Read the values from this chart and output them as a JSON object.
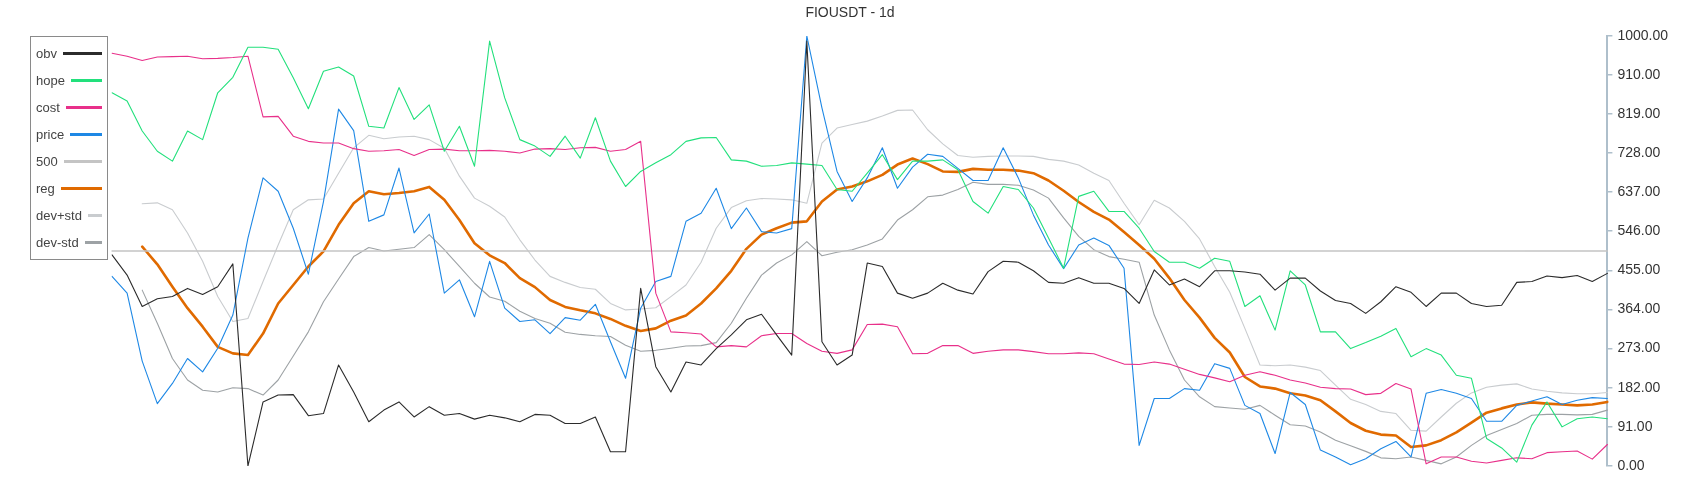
{
  "chart_data": {
    "type": "line",
    "title": "FIOUSDT - 1d",
    "categories": [
      null,
      null,
      null,
      null,
      null,
      null,
      null,
      null,
      null,
      null,
      null,
      null,
      null,
      null,
      null,
      null,
      null,
      null,
      null,
      null,
      null,
      null,
      null,
      null,
      null,
      null,
      null,
      null,
      null,
      null,
      null,
      null,
      null,
      null,
      null,
      null,
      null,
      null,
      null,
      null,
      null,
      null,
      null,
      null,
      null,
      null,
      null,
      null,
      null,
      null,
      null,
      null,
      null,
      null,
      null,
      null,
      null,
      null,
      null,
      null,
      null,
      null,
      null,
      null,
      null,
      null,
      null,
      null,
      null,
      null,
      null,
      null,
      null,
      null,
      null,
      null,
      null,
      null,
      null,
      null,
      null,
      null,
      null,
      null,
      null,
      null,
      null,
      null,
      null,
      null,
      null,
      null,
      null,
      null,
      null,
      null,
      null,
      null,
      null,
      null
    ],
    "series": [
      {
        "name": "obv",
        "color": "#2b2b2b",
        "values": [
          491,
          444,
          371,
          389,
          394,
          413,
          399,
          417,
          470,
          0,
          149,
          165,
          166,
          117,
          122,
          235,
          172,
          103,
          130,
          149,
          114,
          138,
          118,
          122,
          109,
          118,
          112,
          103,
          120,
          118,
          99,
          99,
          114,
          33,
          33,
          413,
          231,
          172,
          242,
          235,
          273,
          305,
          340,
          353,
          305,
          258,
          988,
          289,
          235,
          258,
          472,
          464,
          402,
          390,
          402,
          425,
          409,
          400,
          452,
          476,
          474,
          454,
          427,
          425,
          438,
          425,
          425,
          413,
          378,
          456,
          421,
          435,
          417,
          454,
          454,
          451,
          446,
          409,
          437,
          437,
          407,
          385,
          378,
          355,
          382,
          417,
          404,
          371,
          402,
          402,
          378,
          371,
          374,
          427,
          429,
          442,
          438,
          443,
          429,
          448
        ]
      },
      {
        "name": "hope",
        "color": "#22e07c",
        "values": [
          868,
          849,
          779,
          732,
          709,
          779,
          759,
          868,
          904,
          974,
          974,
          969,
          903,
          831,
          918,
          928,
          907,
          790,
          786,
          880,
          806,
          840,
          732,
          790,
          697,
          988,
          856,
          759,
          744,
          720,
          767,
          716,
          810,
          709,
          650,
          685,
          705,
          724,
          755,
          763,
          764,
          712,
          709,
          697,
          699,
          705,
          702,
          699,
          643,
          639,
          681,
          724,
          666,
          709,
          709,
          712,
          689,
          615,
          588,
          650,
          643,
          600,
          530,
          460,
          627,
          639,
          592,
          592,
          553,
          499,
          474,
          474,
          460,
          483,
          476,
          371,
          396,
          316,
          454,
          421,
          312,
          312,
          273,
          287,
          302,
          320,
          254,
          273,
          258,
          211,
          204,
          64,
          42,
          9,
          95,
          149,
          91,
          110,
          114,
          110
        ]
      },
      {
        "name": "cost",
        "color": "#e8308a",
        "values": [
          960,
          953,
          943,
          951,
          952,
          953,
          947,
          948,
          950,
          953,
          812,
          813,
          767,
          755,
          751,
          751,
          738,
          732,
          733,
          736,
          722,
          736,
          737,
          733,
          733,
          734,
          732,
          728,
          737,
          738,
          736,
          740,
          741,
          732,
          736,
          755,
          402,
          312,
          310,
          307,
          277,
          280,
          277,
          303,
          308,
          308,
          285,
          267,
          262,
          270,
          329,
          330,
          324,
          261,
          262,
          280,
          280,
          262,
          267,
          270,
          270,
          266,
          261,
          261,
          263,
          261,
          249,
          237,
          236,
          242,
          237,
          225,
          213,
          205,
          196,
          211,
          219,
          211,
          200,
          193,
          183,
          180,
          179,
          166,
          169,
          192,
          179,
          5,
          21,
          21,
          11,
          7,
          13,
          19,
          17,
          31,
          33,
          35,
          16,
          50
        ]
      },
      {
        "name": "price",
        "color": "#1e88e5",
        "values": [
          441,
          402,
          244,
          145,
          192,
          250,
          219,
          274,
          351,
          530,
          670,
          639,
          553,
          446,
          615,
          830,
          780,
          569,
          584,
          693,
          542,
          586,
          402,
          433,
          347,
          476,
          367,
          336,
          340,
          308,
          345,
          339,
          376,
          289,
          204,
          367,
          429,
          441,
          569,
          588,
          646,
          552,
          600,
          545,
          542,
          552,
          1000,
          833,
          685,
          615,
          670,
          740,
          646,
          695,
          725,
          720,
          692,
          664,
          664,
          740,
          670,
          584,
          514,
          459,
          514,
          530,
          513,
          460,
          48,
          157,
          157,
          180,
          176,
          238,
          227,
          141,
          122,
          29,
          171,
          143,
          37,
          21,
          3,
          17,
          40,
          57,
          21,
          169,
          178,
          169,
          157,
          104,
          104,
          141,
          151,
          161,
          143,
          153,
          159,
          157
        ]
      },
      {
        "name": "500",
        "color": "#c4c4c4",
        "values": [
          500,
          500,
          500,
          500,
          500,
          500,
          500,
          500,
          500,
          500,
          500,
          500,
          500,
          500,
          500,
          500,
          500,
          500,
          500,
          500,
          500,
          500,
          500,
          500,
          500,
          500,
          500,
          500,
          500,
          500,
          500,
          500,
          500,
          500,
          500,
          500,
          500,
          500,
          500,
          500,
          500,
          500,
          500,
          500,
          500,
          500,
          500,
          500,
          500,
          500,
          500,
          500,
          500,
          500,
          500,
          500,
          500,
          500,
          500,
          500,
          500,
          500,
          500,
          500,
          500,
          500,
          500,
          500,
          500,
          500,
          500,
          500,
          500,
          500,
          500,
          500,
          500,
          500,
          500,
          500,
          500,
          500,
          500,
          500,
          500,
          500,
          500,
          500,
          500,
          500,
          500,
          500,
          500,
          500,
          500,
          500,
          500,
          500,
          500,
          500
        ]
      },
      {
        "name": "reg",
        "color": "#e06a00",
        "values": [
          null,
          null,
          510,
          469,
          417,
          367,
          324,
          277,
          262,
          258,
          308,
          378,
          421,
          464,
          499,
          561,
          611,
          639,
          632,
          635,
          639,
          649,
          619,
          572,
          518,
          490,
          472,
          437,
          416,
          386,
          370,
          362,
          355,
          342,
          326,
          314,
          320,
          338,
          350,
          378,
          413,
          454,
          505,
          538,
          553,
          566,
          569,
          615,
          643,
          650,
          662,
          677,
          701,
          715,
          702,
          685,
          684,
          691,
          689,
          689,
          687,
          681,
          664,
          640,
          614,
          591,
          573,
          544,
          514,
          482,
          437,
          386,
          345,
          298,
          264,
          207,
          185,
          180,
          169,
          164,
          153,
          127,
          100,
          82,
          73,
          71,
          44,
          48,
          60,
          78,
          101,
          124,
          134,
          143,
          148,
          145,
          143,
          141,
          143,
          149
        ]
      },
      {
        "name": "dev+std",
        "color": "#c9cccf",
        "values": [
          null,
          null,
          610,
          612,
          596,
          542,
          476,
          394,
          336,
          343,
          429,
          514,
          596,
          619,
          621,
          681,
          740,
          769,
          761,
          765,
          767,
          759,
          739,
          674,
          623,
          604,
          579,
          526,
          479,
          441,
          427,
          415,
          411,
          378,
          363,
          365,
          368,
          394,
          421,
          474,
          553,
          601,
          617,
          622,
          621,
          619,
          611,
          751,
          786,
          794,
          802,
          814,
          827,
          828,
          782,
          749,
          722,
          718,
          720,
          721,
          721,
          720,
          713,
          709,
          700,
          681,
          664,
          611,
          561,
          618,
          600,
          569,
          528,
          464,
          404,
          320,
          235,
          233,
          235,
          230,
          222,
          188,
          155,
          143,
          127,
          122,
          83,
          81,
          114,
          146,
          170,
          183,
          188,
          191,
          179,
          174,
          170,
          168,
          168,
          171
        ]
      },
      {
        "name": "dev-std",
        "color": "#9da2a5",
        "values": [
          null,
          null,
          409,
          332,
          250,
          200,
          176,
          172,
          182,
          180,
          165,
          200,
          256,
          312,
          382,
          435,
          487,
          508,
          500,
          504,
          508,
          538,
          503,
          464,
          425,
          393,
          383,
          360,
          343,
          332,
          311,
          306,
          303,
          301,
          281,
          267,
          269,
          274,
          279,
          280,
          287,
          332,
          390,
          444,
          472,
          491,
          522,
          489,
          497,
          503,
          514,
          528,
          572,
          596,
          626,
          630,
          643,
          660,
          655,
          655,
          653,
          642,
          623,
          577,
          534,
          503,
          487,
          481,
          474,
          351,
          270,
          200,
          161,
          138,
          135,
          132,
          141,
          118,
          96,
          93,
          79,
          60,
          47,
          34,
          19,
          17,
          21,
          13,
          5,
          21,
          48,
          71,
          85,
          99,
          118,
          120,
          120,
          119,
          120,
          130
        ]
      }
    ],
    "ylim": [
      0,
      1000
    ],
    "yticks": [
      {
        "value": 0,
        "label": "0.00"
      },
      {
        "value": 91,
        "label": "91.00"
      },
      {
        "value": 182,
        "label": "182.00"
      },
      {
        "value": 273,
        "label": "273.00"
      },
      {
        "value": 364,
        "label": "364.00"
      },
      {
        "value": 455,
        "label": "455.00"
      },
      {
        "value": 546,
        "label": "546.00"
      },
      {
        "value": 637,
        "label": "637.00"
      },
      {
        "value": 728,
        "label": "728.00"
      },
      {
        "value": 819,
        "label": "819.00"
      },
      {
        "value": 910,
        "label": "910.00"
      },
      {
        "value": 1000,
        "label": "1000.00"
      }
    ],
    "tick_labels": "y",
    "grid": false,
    "legend": "top left",
    "marker": "none",
    "line_style": "solid"
  }
}
